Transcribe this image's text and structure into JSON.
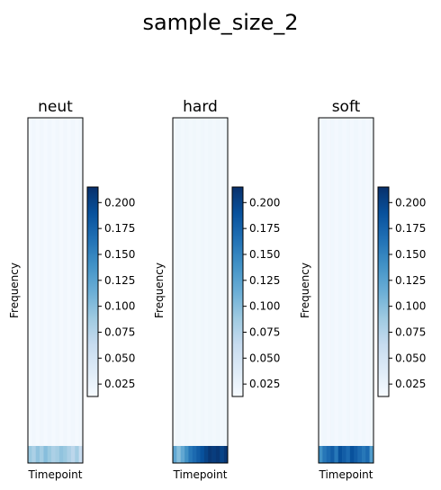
{
  "figure": {
    "title": "sample_size_2"
  },
  "chart_data": {
    "type": "heatmap",
    "colormap": "Blues",
    "colorbar": {
      "range": [
        0.013,
        0.215
      ],
      "ticks": [
        "0.025",
        "0.050",
        "0.075",
        "0.100",
        "0.125",
        "0.150",
        "0.175",
        "0.200"
      ]
    },
    "panels": [
      {
        "title": "neut",
        "xlabel": "Timepoint",
        "ylabel": "Frequency",
        "top_region_value": 0.016,
        "bottom_row": [
          0.09,
          0.08,
          0.095,
          0.085,
          0.1,
          0.09,
          0.08,
          0.085,
          0.095,
          0.09,
          0.08,
          0.07,
          0.085,
          0.06
        ]
      },
      {
        "title": "hard",
        "xlabel": "Timepoint",
        "ylabel": "Frequency",
        "top_region_value": 0.018,
        "bottom_row": [
          0.12,
          0.1,
          0.12,
          0.14,
          0.16,
          0.17,
          0.18,
          0.19,
          0.2,
          0.21,
          0.205,
          0.21,
          0.2,
          0.21
        ]
      },
      {
        "title": "soft",
        "xlabel": "Timepoint",
        "ylabel": "Frequency",
        "top_region_value": 0.017,
        "bottom_row": [
          0.14,
          0.16,
          0.17,
          0.18,
          0.16,
          0.19,
          0.18,
          0.17,
          0.19,
          0.18,
          0.17,
          0.16,
          0.17,
          0.13
        ]
      }
    ]
  }
}
